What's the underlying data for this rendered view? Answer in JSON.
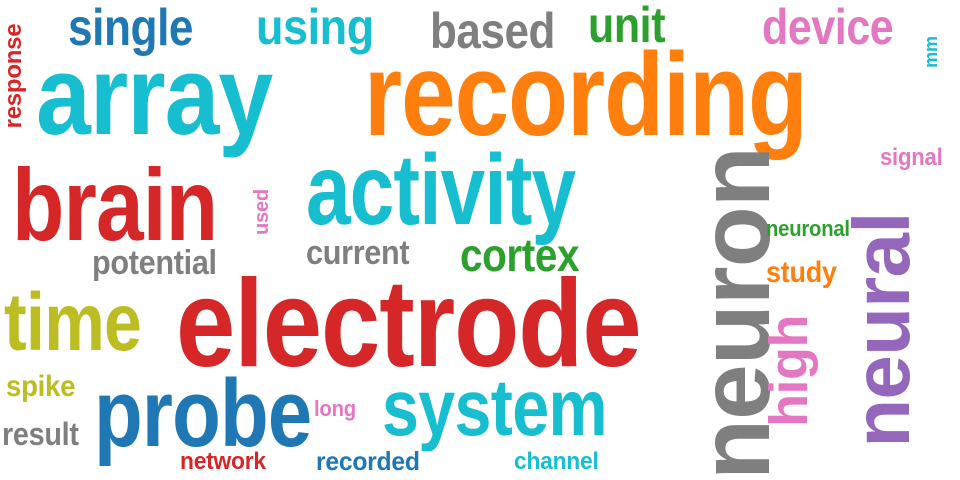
{
  "words": [
    {
      "id": "electrode",
      "text": "electrode",
      "color": "#d62728",
      "rotated": false
    },
    {
      "id": "recording",
      "text": "recording",
      "color": "#ff7f0e",
      "rotated": false
    },
    {
      "id": "array",
      "text": "array",
      "color": "#17becf",
      "rotated": false
    },
    {
      "id": "neuron",
      "text": "neuron",
      "color": "#7f7f7f",
      "rotated": true
    },
    {
      "id": "activity",
      "text": "activity",
      "color": "#17becf",
      "rotated": false
    },
    {
      "id": "brain",
      "text": "brain",
      "color": "#d62728",
      "rotated": false
    },
    {
      "id": "neural",
      "text": "neural",
      "color": "#9467bd",
      "rotated": true
    },
    {
      "id": "probe",
      "text": "probe",
      "color": "#1f77b4",
      "rotated": false
    },
    {
      "id": "system",
      "text": "system",
      "color": "#17becf",
      "rotated": false
    },
    {
      "id": "time",
      "text": "time",
      "color": "#bcbd22",
      "rotated": false
    },
    {
      "id": "high",
      "text": "high",
      "color": "#e377c2",
      "rotated": true
    },
    {
      "id": "single",
      "text": "single",
      "color": "#1f77b4",
      "rotated": false
    },
    {
      "id": "using",
      "text": "using",
      "color": "#17becf",
      "rotated": false
    },
    {
      "id": "based",
      "text": "based",
      "color": "#7f7f7f",
      "rotated": false
    },
    {
      "id": "unit",
      "text": "unit",
      "color": "#2ca02c",
      "rotated": false
    },
    {
      "id": "device",
      "text": "device",
      "color": "#e377c2",
      "rotated": false
    },
    {
      "id": "cortex",
      "text": "cortex",
      "color": "#2ca02c",
      "rotated": false
    },
    {
      "id": "potential",
      "text": "potential",
      "color": "#7f7f7f",
      "rotated": false
    },
    {
      "id": "current",
      "text": "current",
      "color": "#7f7f7f",
      "rotated": false
    },
    {
      "id": "study",
      "text": "study",
      "color": "#ff7f0e",
      "rotated": false
    },
    {
      "id": "spike",
      "text": "spike",
      "color": "#bcbd22",
      "rotated": false
    },
    {
      "id": "result",
      "text": "result",
      "color": "#7f7f7f",
      "rotated": false
    },
    {
      "id": "channel",
      "text": "channel",
      "color": "#17becf",
      "rotated": false
    },
    {
      "id": "recorded",
      "text": "recorded",
      "color": "#1f77b4",
      "rotated": false
    },
    {
      "id": "network",
      "text": "network",
      "color": "#d62728",
      "rotated": false
    },
    {
      "id": "neuronal",
      "text": "neuronal",
      "color": "#2ca02c",
      "rotated": false
    },
    {
      "id": "signal",
      "text": "signal",
      "color": "#e377c2",
      "rotated": false
    },
    {
      "id": "response",
      "text": "response",
      "color": "#d62728",
      "rotated": true
    },
    {
      "id": "used",
      "text": "used",
      "color": "#e377c2",
      "rotated": true
    },
    {
      "id": "long",
      "text": "long",
      "color": "#e377c2",
      "rotated": false
    },
    {
      "id": "mm",
      "text": "mm",
      "color": "#17becf",
      "rotated": true
    }
  ]
}
